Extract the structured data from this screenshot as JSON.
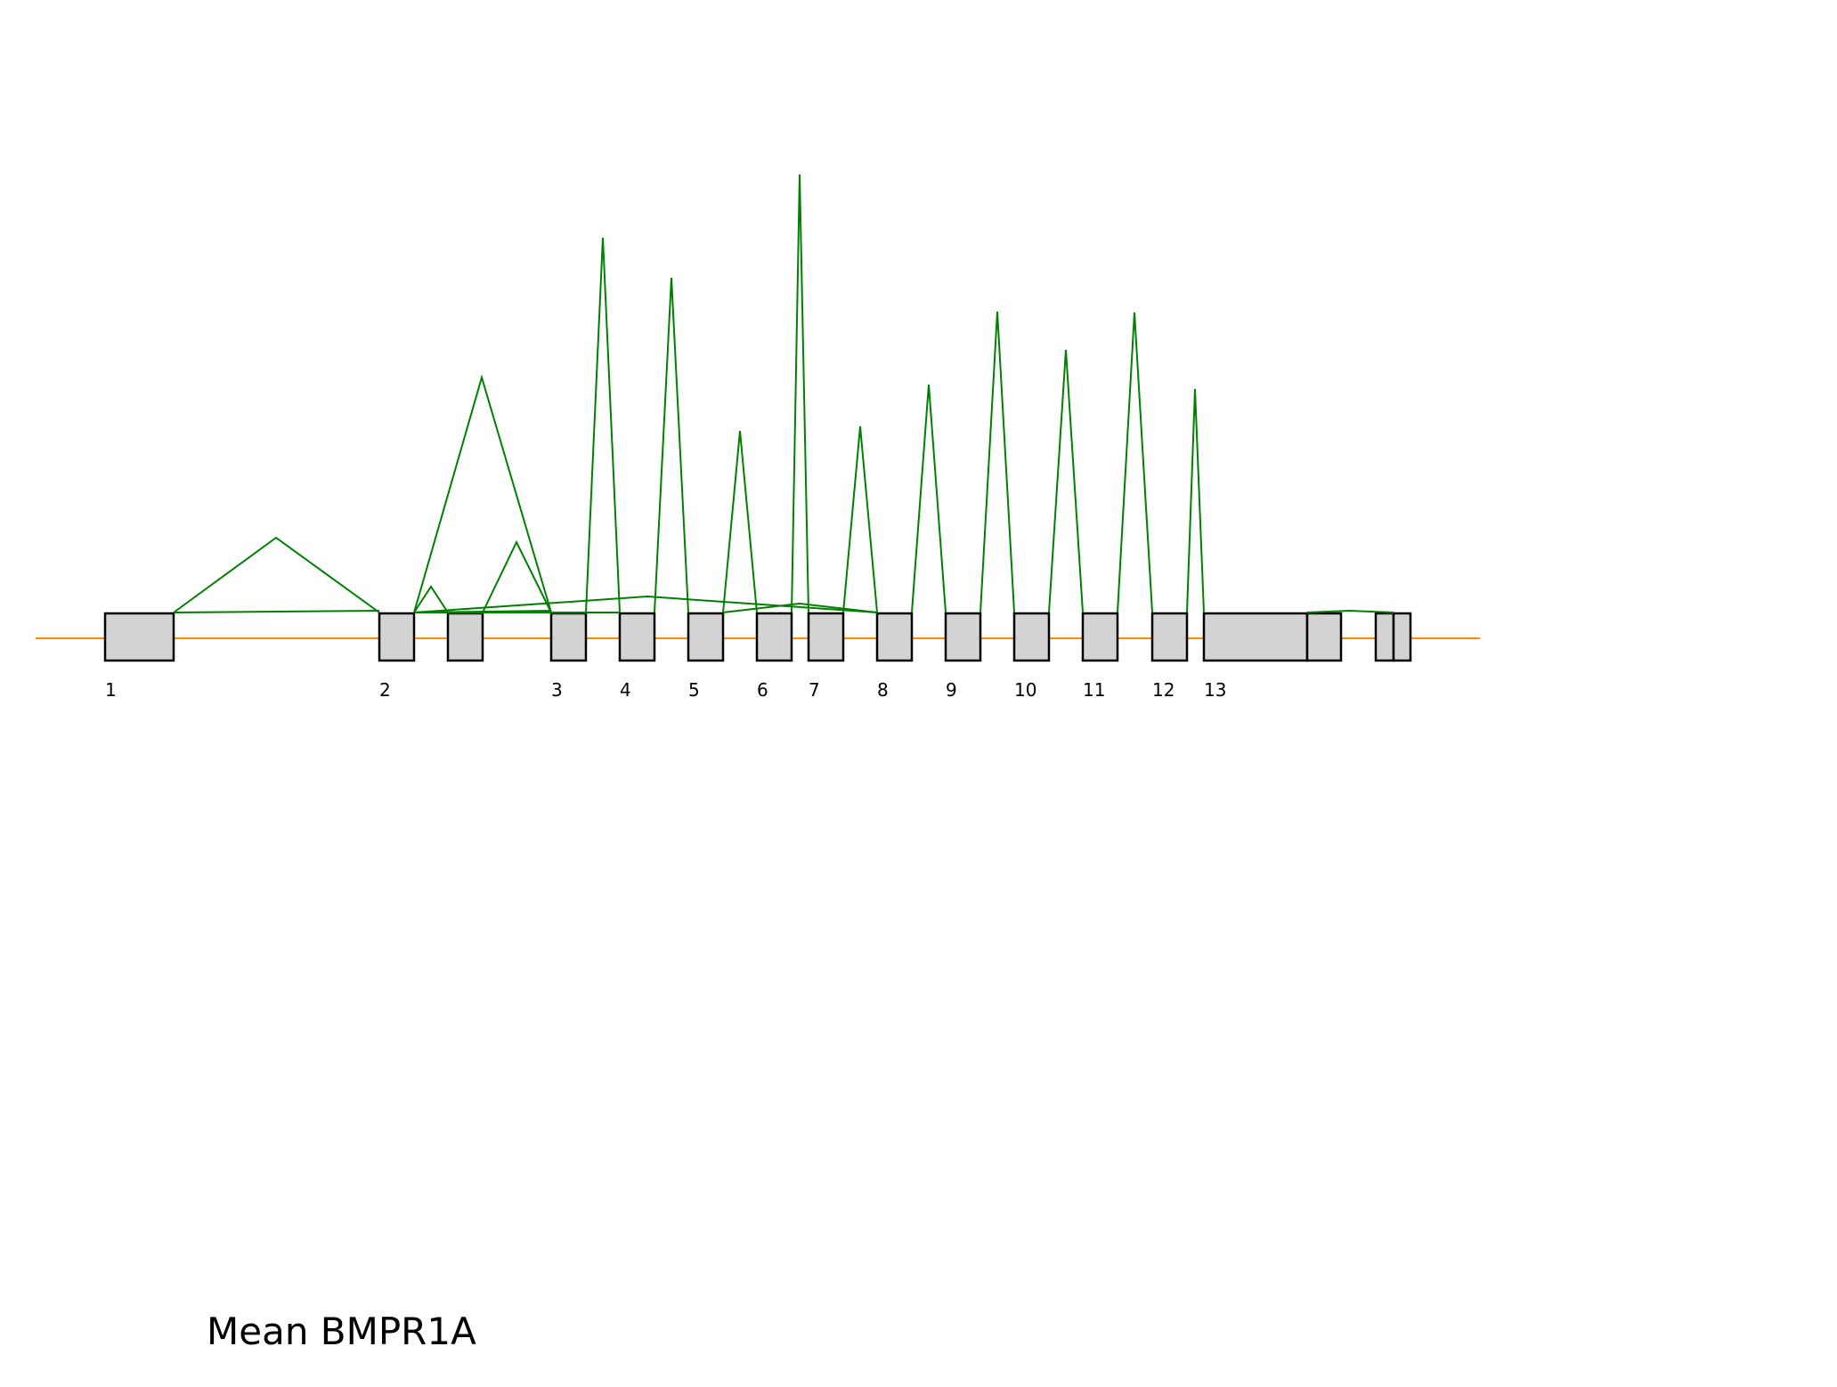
{
  "title": "Mean BMPR1A",
  "colors": {
    "exon_fill": "#d3d3d3",
    "exon_stroke": "#000000",
    "intron_line": "#ff8c00",
    "junction_arc": "#008000",
    "background": "#ffffff"
  },
  "exon_labels": [
    "1",
    "2",
    "3",
    "4",
    "5",
    "6",
    "7",
    "8",
    "9",
    "10",
    "11",
    "12",
    "13"
  ]
}
